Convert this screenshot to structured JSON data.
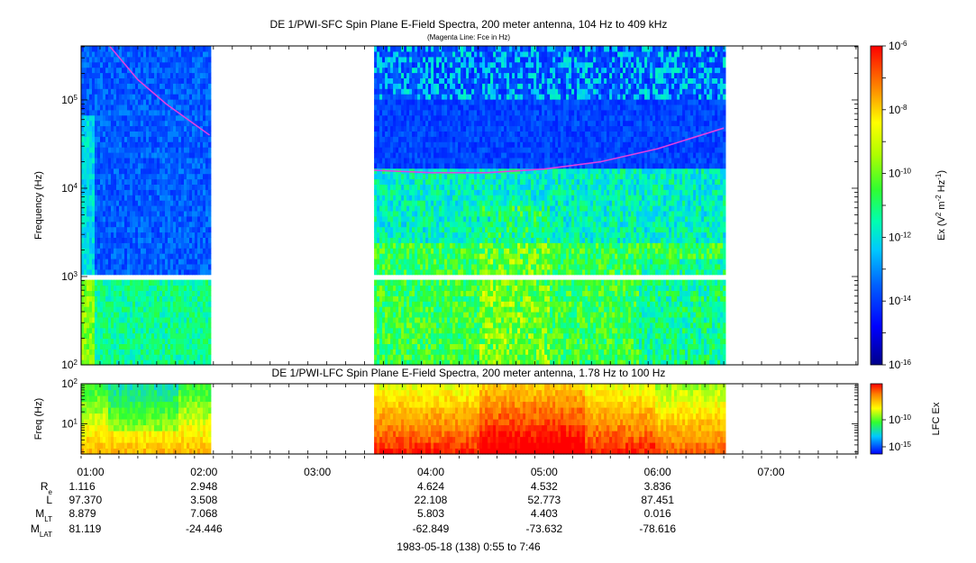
{
  "chart_data": [
    {
      "type": "heatmap",
      "title": "DE 1/PWI-SFC  Spin Plane E-Field Spectra, 200 meter antenna, 104 Hz to 409 kHz",
      "subtitle": "(Magenta Line: Fce in Hz)",
      "ylabel": "Frequency (Hz)",
      "y_scale": "log",
      "ylim": [
        100,
        409000
      ],
      "y_ticks": [
        {
          "value": 100,
          "base": "10",
          "exp": "2"
        },
        {
          "value": 1000,
          "base": "10",
          "exp": "3"
        },
        {
          "value": 10000,
          "base": "10",
          "exp": "4"
        },
        {
          "value": 100000,
          "base": "10",
          "exp": "5"
        }
      ],
      "xlim": [
        "00:55",
        "07:46"
      ],
      "data_intervals": [
        [
          "00:55",
          "02:03"
        ],
        [
          "03:30",
          "06:35"
        ]
      ],
      "fce_line": {
        "color": "#e040e0",
        "segments": [
          {
            "t": [
              "01:10",
              "01:25",
              "01:40",
              "02:03"
            ],
            "f": [
              409000,
              170000,
              90000,
              40000
            ]
          },
          {
            "t": [
              "03:30",
              "04:00",
              "04:30",
              "05:00",
              "05:30",
              "06:00",
              "06:35"
            ],
            "f": [
              16000,
              15000,
              15000,
              16500,
              20000,
              28000,
              48000
            ]
          }
        ]
      },
      "colorbar": {
        "label_base": "Ex (V",
        "label_sup1": "2",
        "label_mid": " m",
        "label_sup2": "-2",
        "label_hz": " Hz",
        "label_sup3": "-1",
        "label_end": ")",
        "scale": "log",
        "range": [
          1e-16,
          1e-06
        ],
        "ticks": [
          {
            "value": 1e-06,
            "base": "10",
            "exp": "-6"
          },
          {
            "value": 1e-08,
            "base": "10",
            "exp": "-8"
          },
          {
            "value": 1e-10,
            "base": "10",
            "exp": "-10"
          },
          {
            "value": 1e-12,
            "base": "10",
            "exp": "-12"
          },
          {
            "value": 1e-14,
            "base": "10",
            "exp": "-14"
          },
          {
            "value": 1e-16,
            "base": "10",
            "exp": "-16"
          }
        ]
      }
    },
    {
      "type": "heatmap",
      "title": "DE 1/PWI-LFC  Spin Plane E-Field Spectra, 200 meter antenna, 1.78 Hz to 100 Hz",
      "ylabel": "Freq (Hz)",
      "y_scale": "log",
      "ylim": [
        1.78,
        100
      ],
      "y_ticks": [
        {
          "value": 10,
          "base": "10",
          "exp": "1"
        },
        {
          "value": 100,
          "base": "10",
          "exp": "2"
        }
      ],
      "xlim": [
        "00:55",
        "07:46"
      ],
      "data_intervals": [
        [
          "00:55",
          "02:03"
        ],
        [
          "03:30",
          "06:35"
        ]
      ],
      "colorbar": {
        "label": "LFC Ex",
        "scale": "log",
        "ticks": [
          {
            "value": 1e-10,
            "base": "10",
            "exp": "-10"
          },
          {
            "value": 1e-15,
            "base": "10",
            "exp": "-15"
          }
        ]
      }
    }
  ],
  "time_axis": {
    "ticks": [
      "01:00",
      "02:00",
      "03:00",
      "04:00",
      "05:00",
      "06:00",
      "07:00"
    ],
    "tick_minutes": [
      60,
      120,
      180,
      240,
      300,
      360,
      420
    ],
    "start_minute": 55,
    "end_minute": 466
  },
  "orbit": {
    "rows": [
      {
        "label": "R",
        "sub": "e",
        "values": [
          "1.116",
          "2.948",
          "",
          "4.624",
          "4.532",
          "3.836",
          ""
        ]
      },
      {
        "label": "L",
        "sub": "",
        "values": [
          "97.370",
          "3.508",
          "",
          "22.108",
          "52.773",
          "87.451",
          ""
        ]
      },
      {
        "label": "M",
        "sub": "LT",
        "values": [
          "8.879",
          "7.068",
          "",
          "5.803",
          "4.403",
          "0.016",
          ""
        ]
      },
      {
        "label": "M",
        "sub": "LAT",
        "values": [
          "81.119",
          "-24.446",
          "",
          "-62.849",
          "-73.632",
          "-78.616",
          ""
        ]
      }
    ]
  },
  "footer": "1983-05-18 (138) 0:55 to 7:46"
}
